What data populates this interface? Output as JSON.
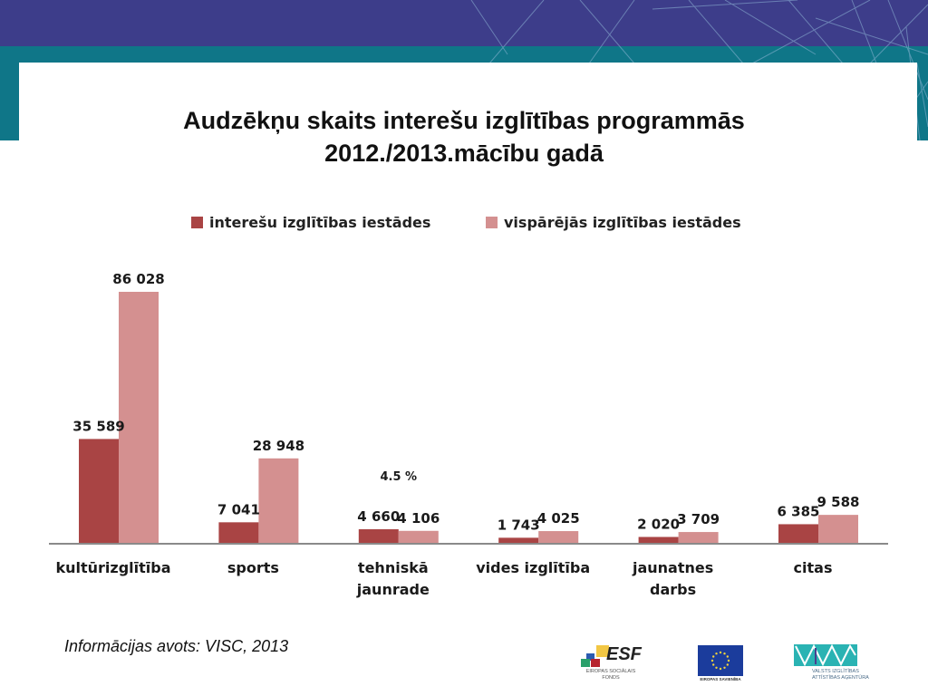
{
  "slide": {
    "title_line1": "Audzēkņu skaits interešu izglītības programmās",
    "title_line2": "2012./2013.mācību gadā",
    "source": "Informācijas avots: VISC, 2013",
    "colors": {
      "purple": "#3d3d8a",
      "teal": "#0f7688",
      "series_dark": "#a94444",
      "series_light": "#d49090"
    }
  },
  "logos": {
    "esf": {
      "text": "ESF",
      "caption_line1": "EIROPAS SOCIĀLAIS",
      "caption_line2": "FONDS"
    },
    "eu": {
      "caption": "EIROPAS SAVIENĪBA"
    },
    "viaa": {
      "caption_line1": "VALSTS IZGLĪTĪBAS",
      "caption_line2": "ATTĪSTĪBAS AĢENTŪRA"
    }
  },
  "chart_data": {
    "type": "bar",
    "title": "Audzēkņu skaits interešu izglītības programmās 2012./2013.mācību gadā",
    "categories": [
      "kultūrizglītība",
      "sports",
      "tehniskā jaunrade",
      "vides izglītība",
      "jaunatnes darbs",
      "citas"
    ],
    "category_lines": [
      [
        "kultūrizglītība"
      ],
      [
        "sports"
      ],
      [
        "tehniskā",
        "jaunrade"
      ],
      [
        "vides izglītība"
      ],
      [
        "jaunatnes",
        "darbs"
      ],
      [
        "citas"
      ]
    ],
    "series": [
      {
        "name": "interešu izglītības iestādes",
        "color": "#a94444",
        "values": [
          35589,
          7041,
          4660,
          1743,
          2020,
          6385
        ],
        "labels": [
          "35 589",
          "7 041",
          "4 660",
          "1 743",
          "2 020",
          "6 385"
        ]
      },
      {
        "name": "vispārējās izglītības iestādes",
        "color": "#d49090",
        "values": [
          86028,
          28948,
          4106,
          4025,
          3709,
          9588
        ],
        "labels": [
          "86 028",
          "28 948",
          "4 106",
          "4 025",
          "3 709",
          "9 588"
        ]
      }
    ],
    "annotations": [
      {
        "text": "4.5 %",
        "category": "tehniskā jaunrade"
      }
    ],
    "ylim": [
      0,
      86028
    ],
    "grid": false,
    "legend": "top",
    "xlabel": "",
    "ylabel": ""
  }
}
